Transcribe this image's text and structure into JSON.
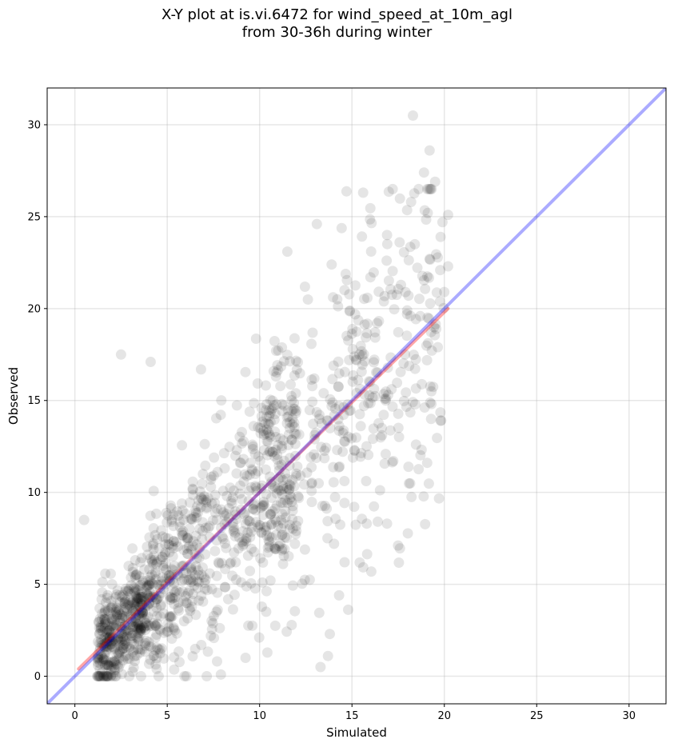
{
  "chart_data": {
    "type": "scatter",
    "title_lines": [
      "X-Y plot at is.vi.6472 for wind_speed_at_10m_agl",
      "from 30-36h during winter"
    ],
    "xlabel": "Simulated",
    "ylabel": "Observed",
    "xlim": [
      -1.5,
      32
    ],
    "ylim": [
      -1.5,
      32
    ],
    "xticks": [
      0,
      5,
      10,
      15,
      20,
      25,
      30
    ],
    "yticks": [
      0,
      5,
      10,
      15,
      20,
      25,
      30
    ],
    "grid": true,
    "point_color": "#000000",
    "point_alpha": 0.1,
    "point_count_approx": 1400,
    "regression_line": {
      "x": [
        0.2,
        20.2
      ],
      "y": [
        0.4,
        20.0
      ],
      "color": "#ff0000"
    },
    "identity_line": {
      "x": [
        -1.5,
        32
      ],
      "y": [
        -1.5,
        32
      ],
      "color": "#0000ff"
    },
    "outlier_points": [
      {
        "x": 18.3,
        "y": 30.5
      },
      {
        "x": 19.2,
        "y": 28.6
      },
      {
        "x": 18.9,
        "y": 27.4
      },
      {
        "x": 19.5,
        "y": 26.9
      },
      {
        "x": 17.2,
        "y": 26.5
      },
      {
        "x": 18.2,
        "y": 25.8
      },
      {
        "x": 20.2,
        "y": 25.1
      },
      {
        "x": 19.1,
        "y": 25.2
      },
      {
        "x": 13.1,
        "y": 24.6
      },
      {
        "x": 19.9,
        "y": 24.7
      },
      {
        "x": 16.9,
        "y": 24.0
      },
      {
        "x": 18.4,
        "y": 23.5
      },
      {
        "x": 11.5,
        "y": 23.1
      },
      {
        "x": 19.2,
        "y": 22.7
      },
      {
        "x": 20.2,
        "y": 22.3
      },
      {
        "x": 13.9,
        "y": 22.4
      },
      {
        "x": 16.0,
        "y": 21.7
      },
      {
        "x": 19.8,
        "y": 23.9
      },
      {
        "x": 2.5,
        "y": 17.5
      },
      {
        "x": 4.1,
        "y": 17.1
      },
      {
        "x": 0.5,
        "y": 8.5
      },
      {
        "x": 13.3,
        "y": 0.5
      },
      {
        "x": 13.7,
        "y": 1.1
      },
      {
        "x": 19.8,
        "y": 13.9
      },
      {
        "x": 19.3,
        "y": 15.5
      },
      {
        "x": 16.9,
        "y": 8.3
      },
      {
        "x": 14.6,
        "y": 6.2
      },
      {
        "x": 15.8,
        "y": 8.3
      },
      {
        "x": 13.8,
        "y": 2.3
      },
      {
        "x": 14.3,
        "y": 4.4
      }
    ]
  }
}
